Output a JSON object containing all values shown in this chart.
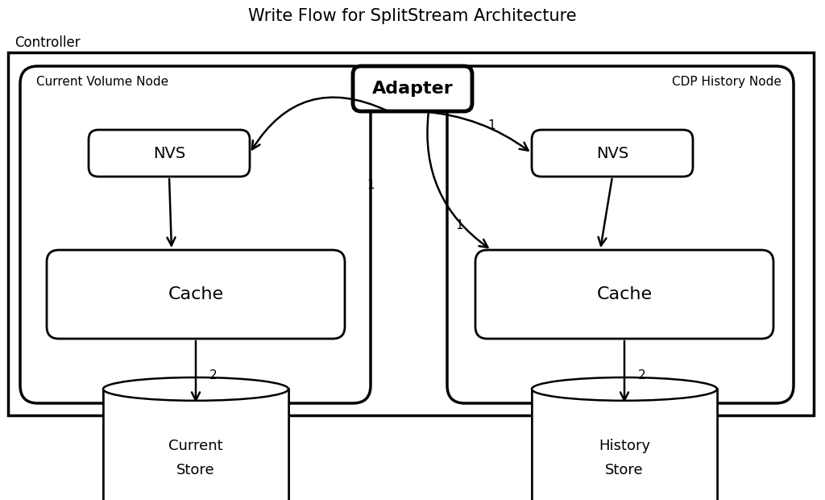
{
  "title": "Write Flow for SplitStream Architecture",
  "bg_color": "#ffffff",
  "border_color": "#000000",
  "text_color": "#000000",
  "controller_label": "Controller",
  "current_node_label": "Current Volume Node",
  "cdp_node_label": "CDP History Node",
  "adapter_label": "Adapter",
  "nvs_label": "NVS",
  "cache_label": "Cache",
  "current_store_label": "Current\nStore",
  "history_store_label": "History\nStore",
  "fig_width": 10.24,
  "fig_height": 6.2
}
